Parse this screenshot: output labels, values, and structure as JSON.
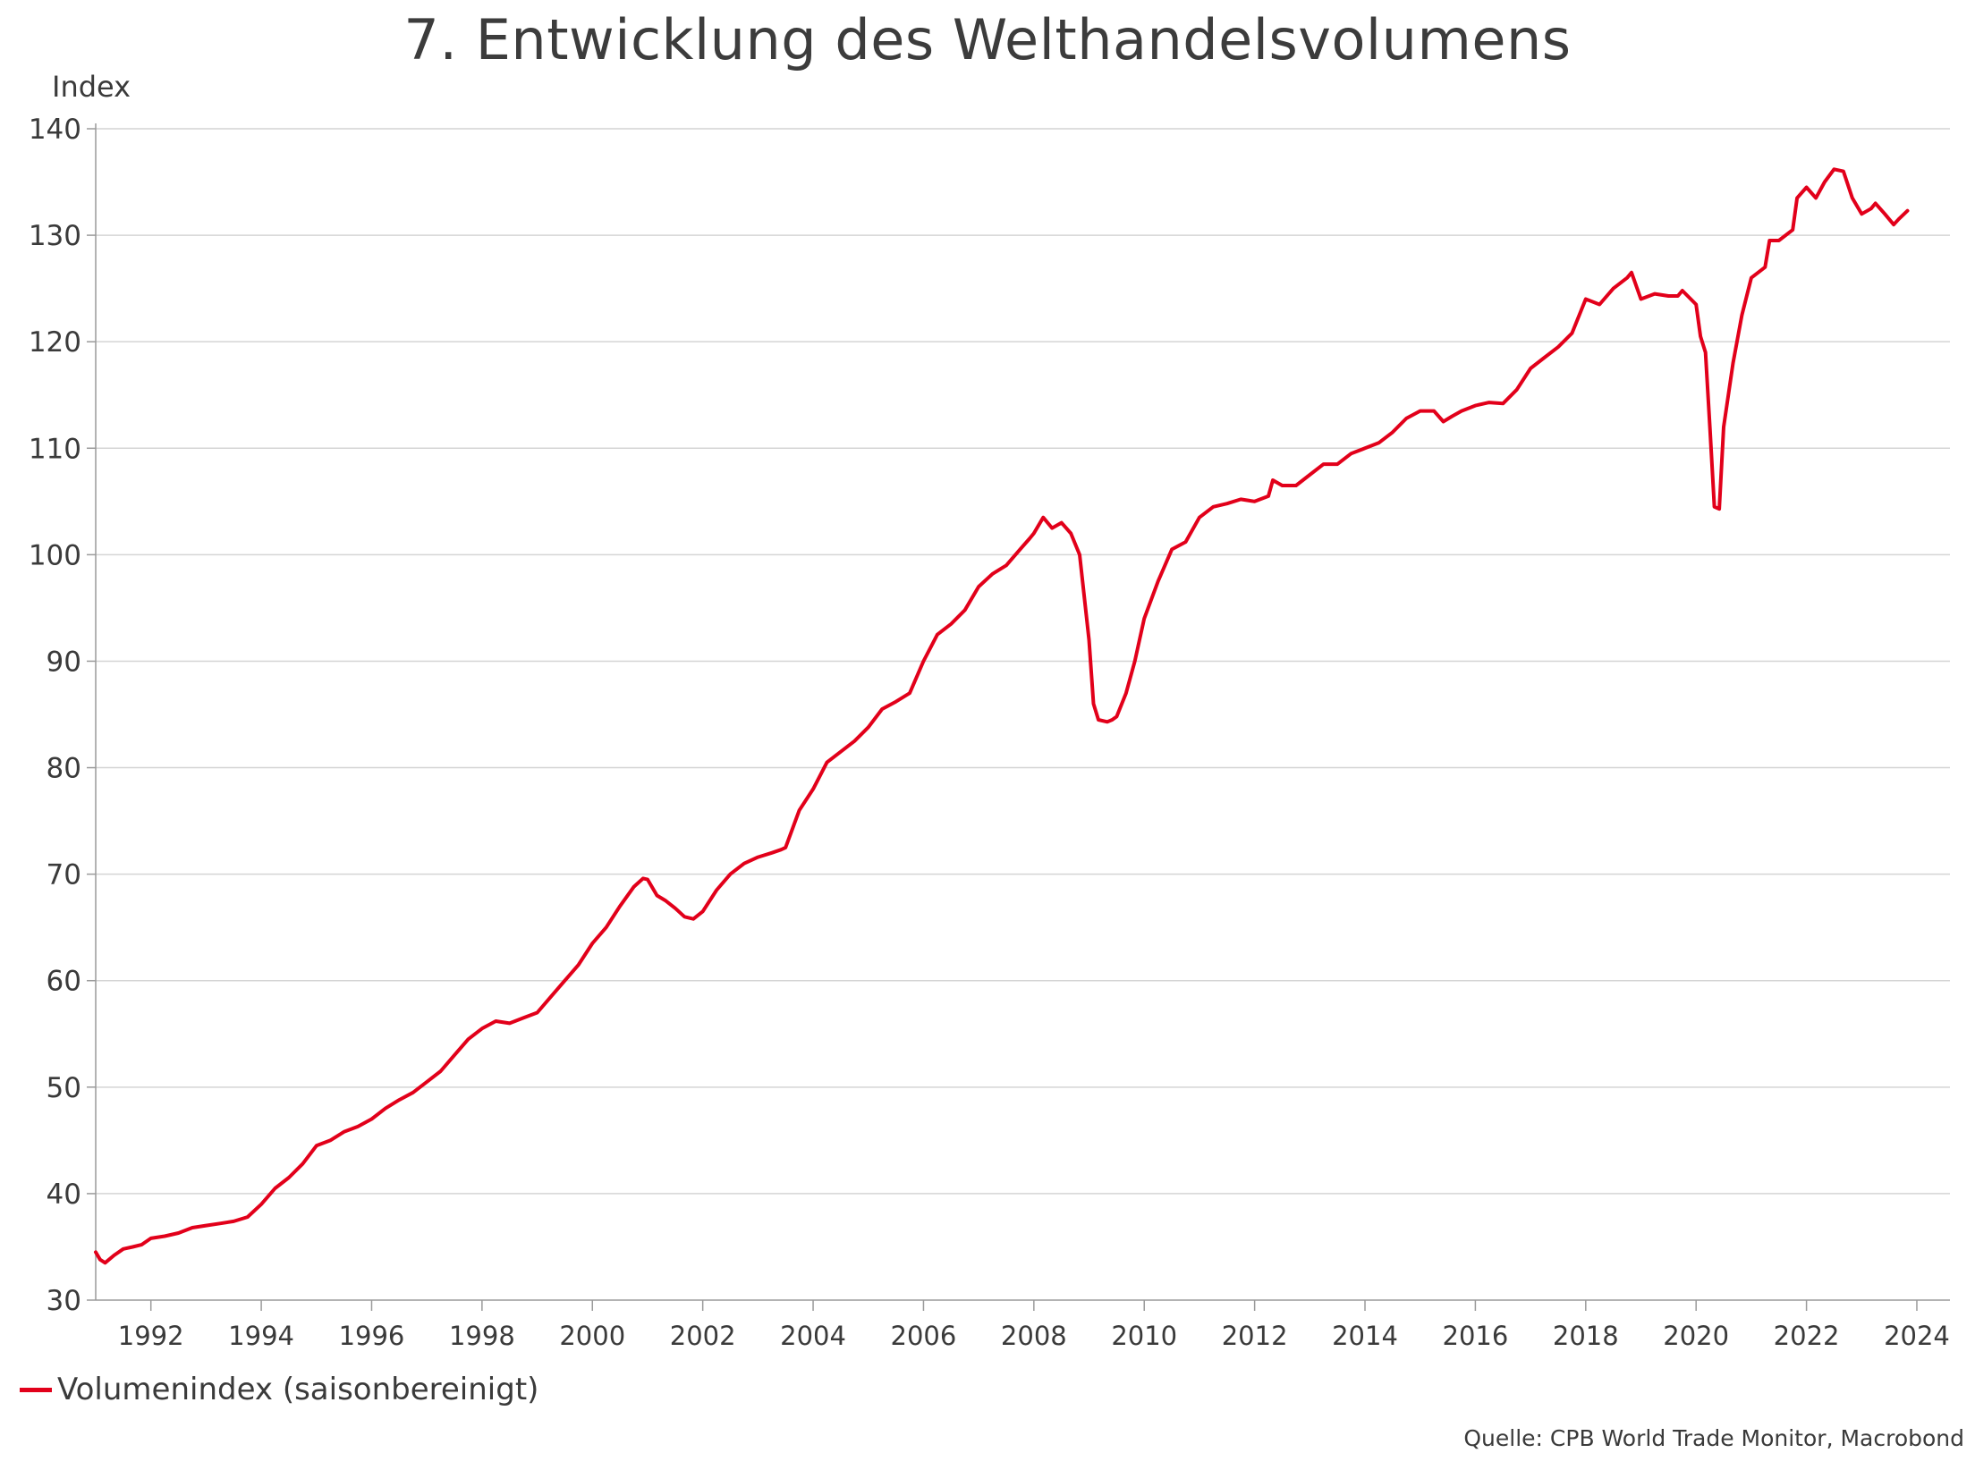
{
  "chart_data": {
    "type": "line",
    "title": "7. Entwicklung des Welthandelsvolumens",
    "ylabel": "Index",
    "xlabel": "",
    "ylim": [
      30,
      140
    ],
    "xlim": [
      1991.0,
      2024.6
    ],
    "yticks": [
      30,
      40,
      50,
      60,
      70,
      80,
      90,
      100,
      110,
      120,
      130,
      140
    ],
    "xticks": [
      "1992",
      "1994",
      "1996",
      "1998",
      "2000",
      "2002",
      "2004",
      "2006",
      "2008",
      "2010",
      "2012",
      "2014",
      "2016",
      "2018",
      "2020",
      "2022",
      "2024"
    ],
    "grid": "horizontal",
    "legend_position": "bottom-left",
    "series": [
      {
        "name": "Volumenindex (saisonbereinigt)",
        "color": "#e2001a",
        "x": [
          1991.0,
          1991.08,
          1991.17,
          1991.33,
          1991.5,
          1991.67,
          1991.83,
          1992.0,
          1992.25,
          1992.5,
          1992.75,
          1993.0,
          1993.25,
          1993.5,
          1993.75,
          1994.0,
          1994.25,
          1994.5,
          1994.75,
          1995.0,
          1995.25,
          1995.5,
          1995.75,
          1996.0,
          1996.25,
          1996.5,
          1996.75,
          1997.0,
          1997.25,
          1997.5,
          1997.75,
          1998.0,
          1998.25,
          1998.5,
          1998.75,
          1999.0,
          1999.25,
          1999.5,
          1999.75,
          2000.0,
          2000.25,
          2000.5,
          2000.75,
          2000.92,
          2001.0,
          2001.17,
          2001.33,
          2001.5,
          2001.67,
          2001.83,
          2002.0,
          2002.25,
          2002.5,
          2002.75,
          2003.0,
          2003.25,
          2003.42,
          2003.5,
          2003.75,
          2004.0,
          2004.25,
          2004.5,
          2004.75,
          2005.0,
          2005.25,
          2005.5,
          2005.75,
          2006.0,
          2006.25,
          2006.5,
          2006.75,
          2007.0,
          2007.25,
          2007.5,
          2007.75,
          2007.92,
          2008.0,
          2008.17,
          2008.33,
          2008.5,
          2008.67,
          2008.83,
          2009.0,
          2009.08,
          2009.17,
          2009.33,
          2009.42,
          2009.5,
          2009.67,
          2009.83,
          2010.0,
          2010.25,
          2010.5,
          2010.75,
          2011.0,
          2011.25,
          2011.5,
          2011.75,
          2012.0,
          2012.25,
          2012.33,
          2012.5,
          2012.75,
          2013.0,
          2013.25,
          2013.5,
          2013.75,
          2014.0,
          2014.25,
          2014.5,
          2014.75,
          2015.0,
          2015.25,
          2015.42,
          2015.58,
          2015.75,
          2016.0,
          2016.25,
          2016.5,
          2016.75,
          2017.0,
          2017.25,
          2017.5,
          2017.75,
          2018.0,
          2018.25,
          2018.5,
          2018.75,
          2018.83,
          2019.0,
          2019.25,
          2019.5,
          2019.67,
          2019.75,
          2020.0,
          2020.08,
          2020.17,
          2020.25,
          2020.33,
          2020.42,
          2020.5,
          2020.67,
          2020.83,
          2021.0,
          2021.25,
          2021.33,
          2021.5,
          2021.75,
          2021.83,
          2022.0,
          2022.17,
          2022.33,
          2022.5,
          2022.67,
          2022.83,
          2023.0,
          2023.17,
          2023.25,
          2023.42,
          2023.58,
          2023.67,
          2023.83
        ],
        "values": [
          34.5,
          33.8,
          33.5,
          34.2,
          34.8,
          35.0,
          35.2,
          35.8,
          36.0,
          36.3,
          36.8,
          37.0,
          37.2,
          37.4,
          37.8,
          39.0,
          40.5,
          41.5,
          42.8,
          44.5,
          45.0,
          45.8,
          46.3,
          47.0,
          48.0,
          48.8,
          49.5,
          50.5,
          51.5,
          53.0,
          54.5,
          55.5,
          56.2,
          56.0,
          56.5,
          57.0,
          58.5,
          60.0,
          61.5,
          63.5,
          65.0,
          67.0,
          68.8,
          69.6,
          69.5,
          68.0,
          67.5,
          66.8,
          66.0,
          65.8,
          66.5,
          68.5,
          70.0,
          71.0,
          71.6,
          72.0,
          72.3,
          72.5,
          76.0,
          78.0,
          80.5,
          81.5,
          82.5,
          83.8,
          85.5,
          86.2,
          87.0,
          90.0,
          92.5,
          93.5,
          94.8,
          97.0,
          98.2,
          99.0,
          100.5,
          101.5,
          102.0,
          103.5,
          102.5,
          103.0,
          102.0,
          100.0,
          92.0,
          86.0,
          84.5,
          84.3,
          84.5,
          84.8,
          87.0,
          90.0,
          94.0,
          97.5,
          100.5,
          101.2,
          103.5,
          104.5,
          104.8,
          105.2,
          105.0,
          105.5,
          107.0,
          106.5,
          106.5,
          107.5,
          108.5,
          108.5,
          109.5,
          110.0,
          110.5,
          111.5,
          112.8,
          113.5,
          113.5,
          112.5,
          113.0,
          113.5,
          114.0,
          114.3,
          114.2,
          115.5,
          117.5,
          118.5,
          119.5,
          120.8,
          124.0,
          123.5,
          125.0,
          126.0,
          126.5,
          124.0,
          124.5,
          124.3,
          124.3,
          124.8,
          123.5,
          120.5,
          119.0,
          112.0,
          104.5,
          104.3,
          112.0,
          118.0,
          122.5,
          126.0,
          127.0,
          129.5,
          129.5,
          130.5,
          133.5,
          134.5,
          133.5,
          135.0,
          136.2,
          136.0,
          133.5,
          132.0,
          132.5,
          133.0,
          132.0,
          131.0,
          131.5,
          132.3
        ]
      }
    ]
  },
  "source_text": "Quelle: CPB World Trade Monitor, Macrobond"
}
